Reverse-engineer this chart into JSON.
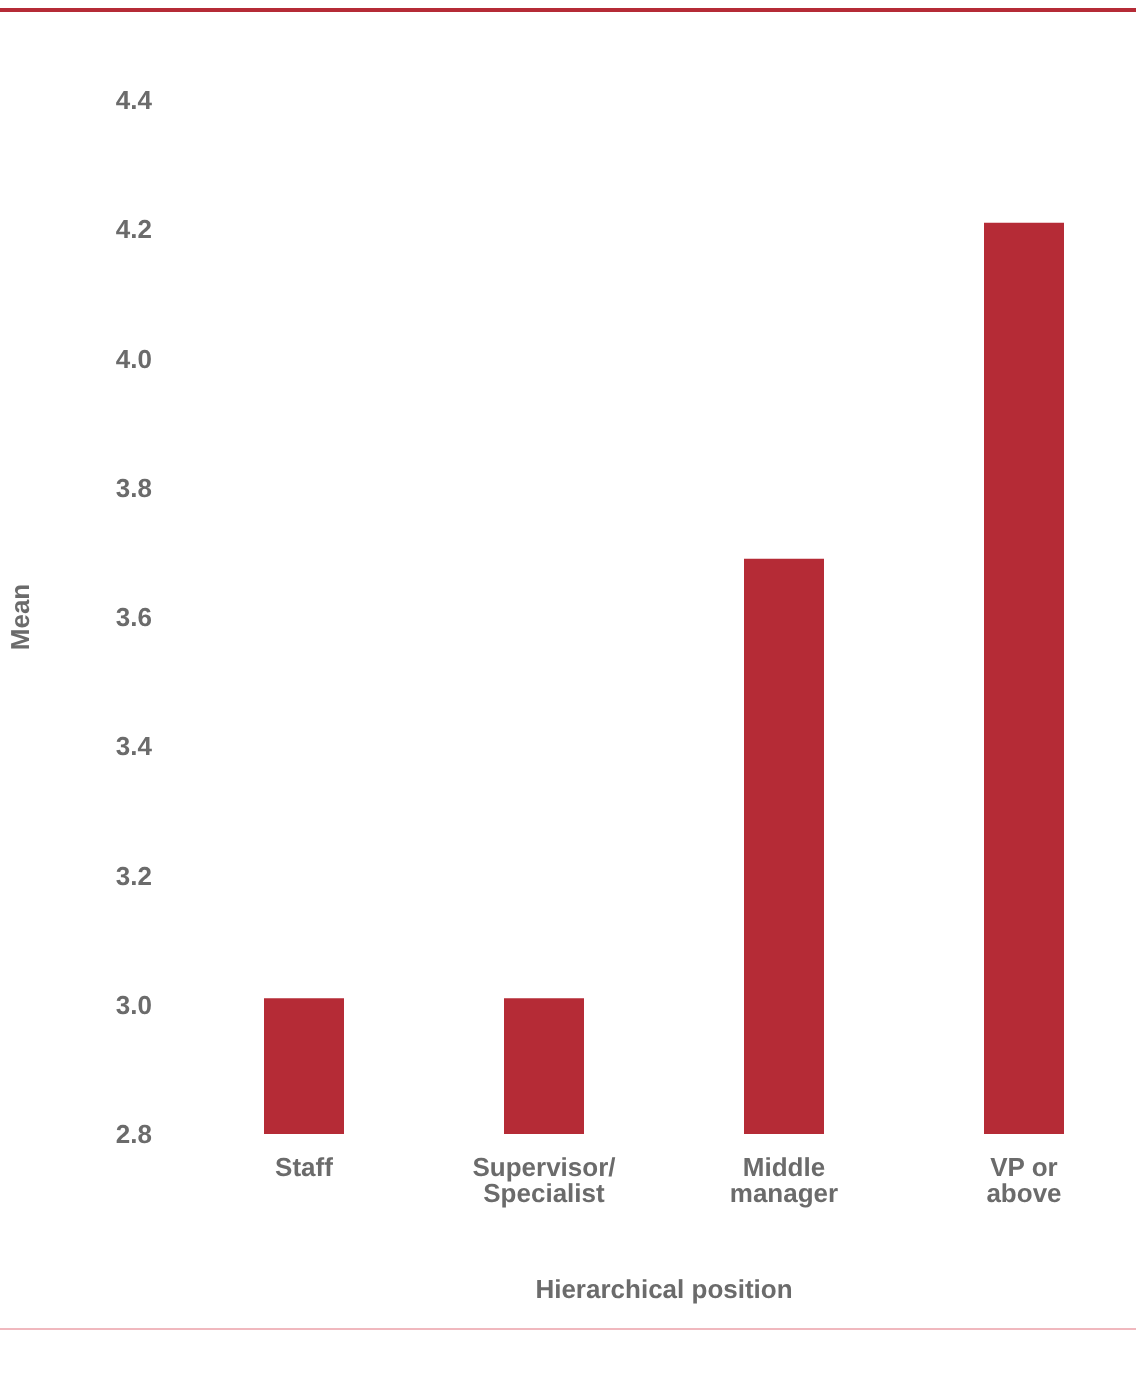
{
  "chart_data": {
    "type": "bar",
    "xlabel": "Hierarchical position",
    "ylabel": "Mean",
    "categories": [
      "Staff",
      "Supervisor/ Specialist",
      "Middle manager",
      "VP or above"
    ],
    "values": [
      3.01,
      3.01,
      3.69,
      4.21
    ],
    "color": "#b52b36",
    "ylim": [
      2.8,
      4.4
    ],
    "yticks": [
      2.8,
      {
        "value": 3,
        "label": "3.0"
      },
      3.2,
      3.4,
      3.6,
      3.8,
      {
        "value": 4,
        "label": "4.0"
      },
      4.2,
      4.4
    ],
    "grid": false
  }
}
